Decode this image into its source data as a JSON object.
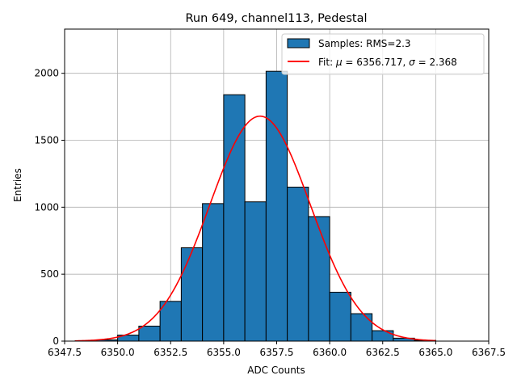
{
  "chart_data": {
    "type": "bar",
    "title": "Run 649, channel113, Pedestal",
    "xlabel": "ADC Counts",
    "ylabel": "Entries",
    "xlim": [
      6347.5,
      6367.5
    ],
    "ylim": [
      0,
      2330
    ],
    "xticks": [
      6347.5,
      6350.0,
      6352.5,
      6355.0,
      6357.5,
      6360.0,
      6362.5,
      6365.0,
      6367.5
    ],
    "xtick_labels": [
      "6347.5",
      "6350.0",
      "6352.5",
      "6355.0",
      "6357.5",
      "6360.0",
      "6362.5",
      "6365.0",
      "6367.5"
    ],
    "yticks": [
      0,
      500,
      1000,
      1500,
      2000
    ],
    "ytick_labels": [
      "0",
      "500",
      "1000",
      "1500",
      "2000"
    ],
    "grid": true,
    "legend_position": "top-right",
    "series": [
      {
        "name": "Samples: RMS=2.3",
        "type": "histogram",
        "color": "#1f77b4",
        "bin_edges": [
          6348,
          6349,
          6350,
          6351,
          6352,
          6353,
          6354,
          6355,
          6356,
          6357,
          6358,
          6359,
          6360,
          6361,
          6362,
          6363,
          6364,
          6365
        ],
        "counts": [
          3,
          9,
          45,
          112,
          297,
          697,
          1027,
          1840,
          1040,
          2015,
          1150,
          930,
          365,
          205,
          78,
          22,
          6
        ]
      },
      {
        "name_prefix": "Fit: ",
        "name_mu_label": "μ",
        "name_mid": " = 6356.717, ",
        "name_sigma_label": "σ",
        "name_suffix": " = 2.368",
        "type": "line",
        "color": "#ff0000",
        "model": "gaussian",
        "mu": 6356.717,
        "sigma": 2.368,
        "amplitude": 1680,
        "x_range": [
          6348,
          6365
        ]
      }
    ]
  }
}
